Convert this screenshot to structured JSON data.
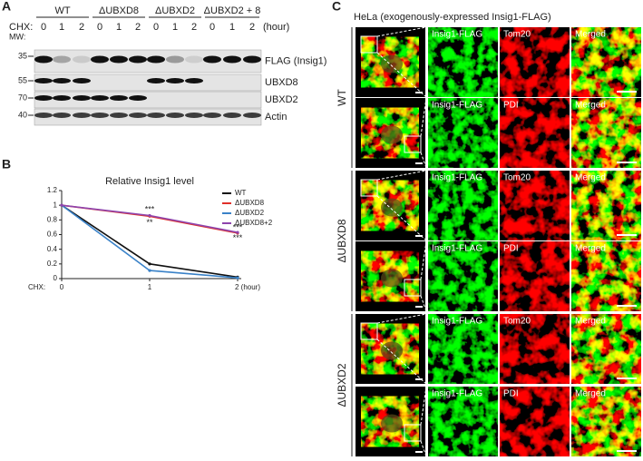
{
  "panel_a": {
    "label": "A",
    "groups": [
      "WT",
      "ΔUBXD8",
      "ΔUBXD2",
      "ΔUBXD2 + 8"
    ],
    "chx_label": "CHX:",
    "lanes": [
      "0",
      "1",
      "2"
    ],
    "unit": "(hour)",
    "mw_label": "MW:",
    "blots": [
      {
        "mw": "35",
        "name": "FLAG (Insig1)"
      },
      {
        "mw": "55",
        "name": "UBXD8"
      },
      {
        "mw": "70",
        "name": "UBXD2"
      },
      {
        "mw": "40",
        "name": "Actin"
      }
    ]
  },
  "chart_data": {
    "panel_label": "B",
    "type": "line",
    "title": "Relative Insig1 level",
    "x_label": "CHX:",
    "x": [
      0,
      1,
      2
    ],
    "xlim": [
      0,
      2
    ],
    "xticks": [
      0,
      1,
      {
        "value": 2,
        "label": "2 (hour)"
      }
    ],
    "ylim": [
      0,
      1.2
    ],
    "yticks": [
      0,
      0.2,
      0.4,
      0.6,
      0.8,
      1,
      1.2
    ],
    "legend": "upper right",
    "series": [
      {
        "name": "WT",
        "color": "#111111",
        "values": [
          1,
          0.2,
          0.02
        ]
      },
      {
        "name": "ΔUBXD8",
        "color": "#e0302a",
        "values": [
          1,
          0.85,
          0.62
        ]
      },
      {
        "name": "ΔUBXD2",
        "color": "#3a82c8",
        "values": [
          1,
          0.11,
          0.01
        ]
      },
      {
        "name": "ΔUBXD8+2",
        "color": "#8e44ad",
        "values": [
          1,
          0.86,
          0.63
        ]
      }
    ],
    "annotations": [
      {
        "text": "***",
        "x": 1,
        "y": 0.94
      },
      {
        "text": "**",
        "x": 1,
        "y": 0.76
      },
      {
        "text": "***",
        "x": 2,
        "y": 0.69
      },
      {
        "text": "***",
        "x": 2,
        "y": 0.55
      }
    ]
  },
  "panel_c": {
    "label": "C",
    "title": "HeLa (exogenously-expressed Insig1-FLAG)",
    "conditions": [
      {
        "name": "WT",
        "rows": [
          {
            "channels": [
              "Insig1-FLAG",
              "Tom20",
              "Merged"
            ]
          },
          {
            "channels": [
              "Insig1-FLAG",
              "PDI",
              "Merged"
            ]
          }
        ]
      },
      {
        "name": "ΔUBXD8",
        "rows": [
          {
            "channels": [
              "Insig1-FLAG",
              "Tom20",
              "Merged"
            ]
          },
          {
            "channels": [
              "Insig1-FLAG",
              "PDI",
              "Merged"
            ]
          }
        ]
      },
      {
        "name": "ΔUBXD2",
        "rows": [
          {
            "channels": [
              "Insig1-FLAG",
              "Tom20",
              "Merged"
            ]
          },
          {
            "channels": [
              "Insig1-FLAG",
              "PDI",
              "Merged"
            ]
          }
        ]
      }
    ]
  }
}
